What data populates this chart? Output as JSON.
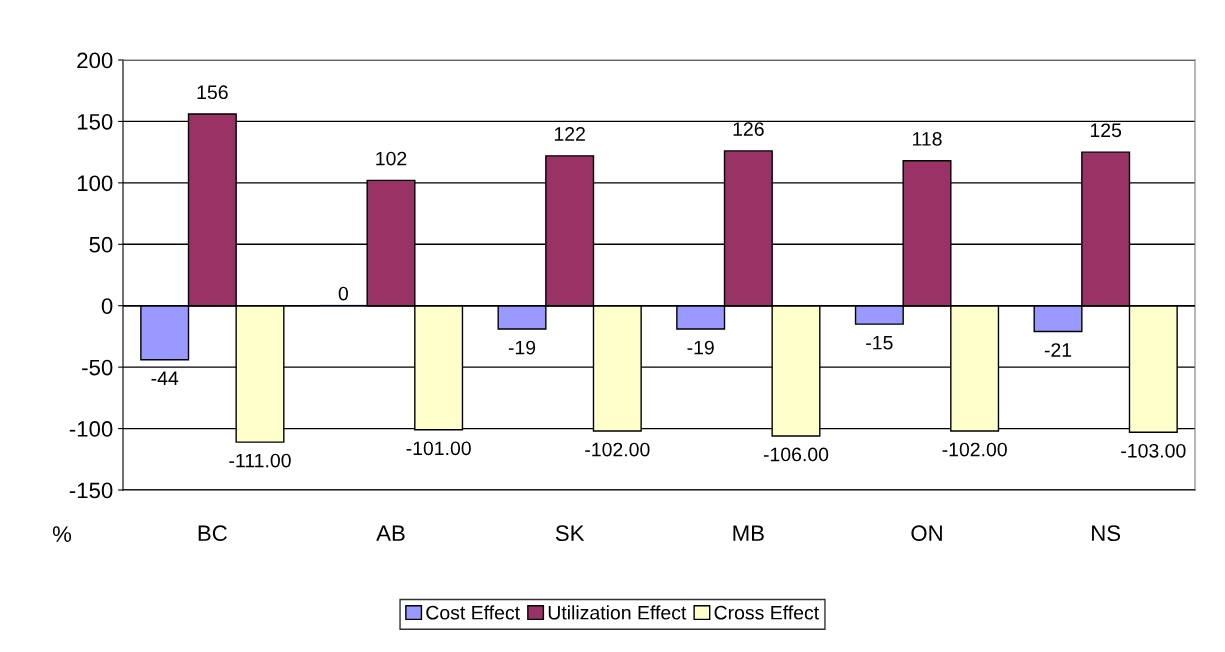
{
  "chart_data": {
    "type": "bar",
    "ylabel": "%",
    "categories": [
      "BC",
      "AB",
      "SK",
      "MB",
      "ON",
      "NS"
    ],
    "series": [
      {
        "name": "Cost Effect",
        "color": "#9999ff",
        "values": [
          -44,
          0,
          -19,
          -19,
          -15,
          -21
        ]
      },
      {
        "name": "Utilization Effect",
        "color": "#993366",
        "values": [
          156,
          102,
          122,
          126,
          118,
          125
        ]
      },
      {
        "name": "Cross Effect",
        "color": "#ffffcc",
        "values": [
          -111,
          -101,
          -102,
          -106,
          -102,
          -103
        ],
        "value_labels": [
          "-111.00",
          "-101.00",
          "-102.00",
          "-106.00",
          "-102.00",
          "-103.00"
        ]
      }
    ],
    "ylim": [
      -150,
      200
    ],
    "yticks": [
      -150,
      -100,
      -50,
      0,
      50,
      100,
      150,
      200
    ],
    "grid": "y",
    "legend": "bottom",
    "data_labels": true
  }
}
